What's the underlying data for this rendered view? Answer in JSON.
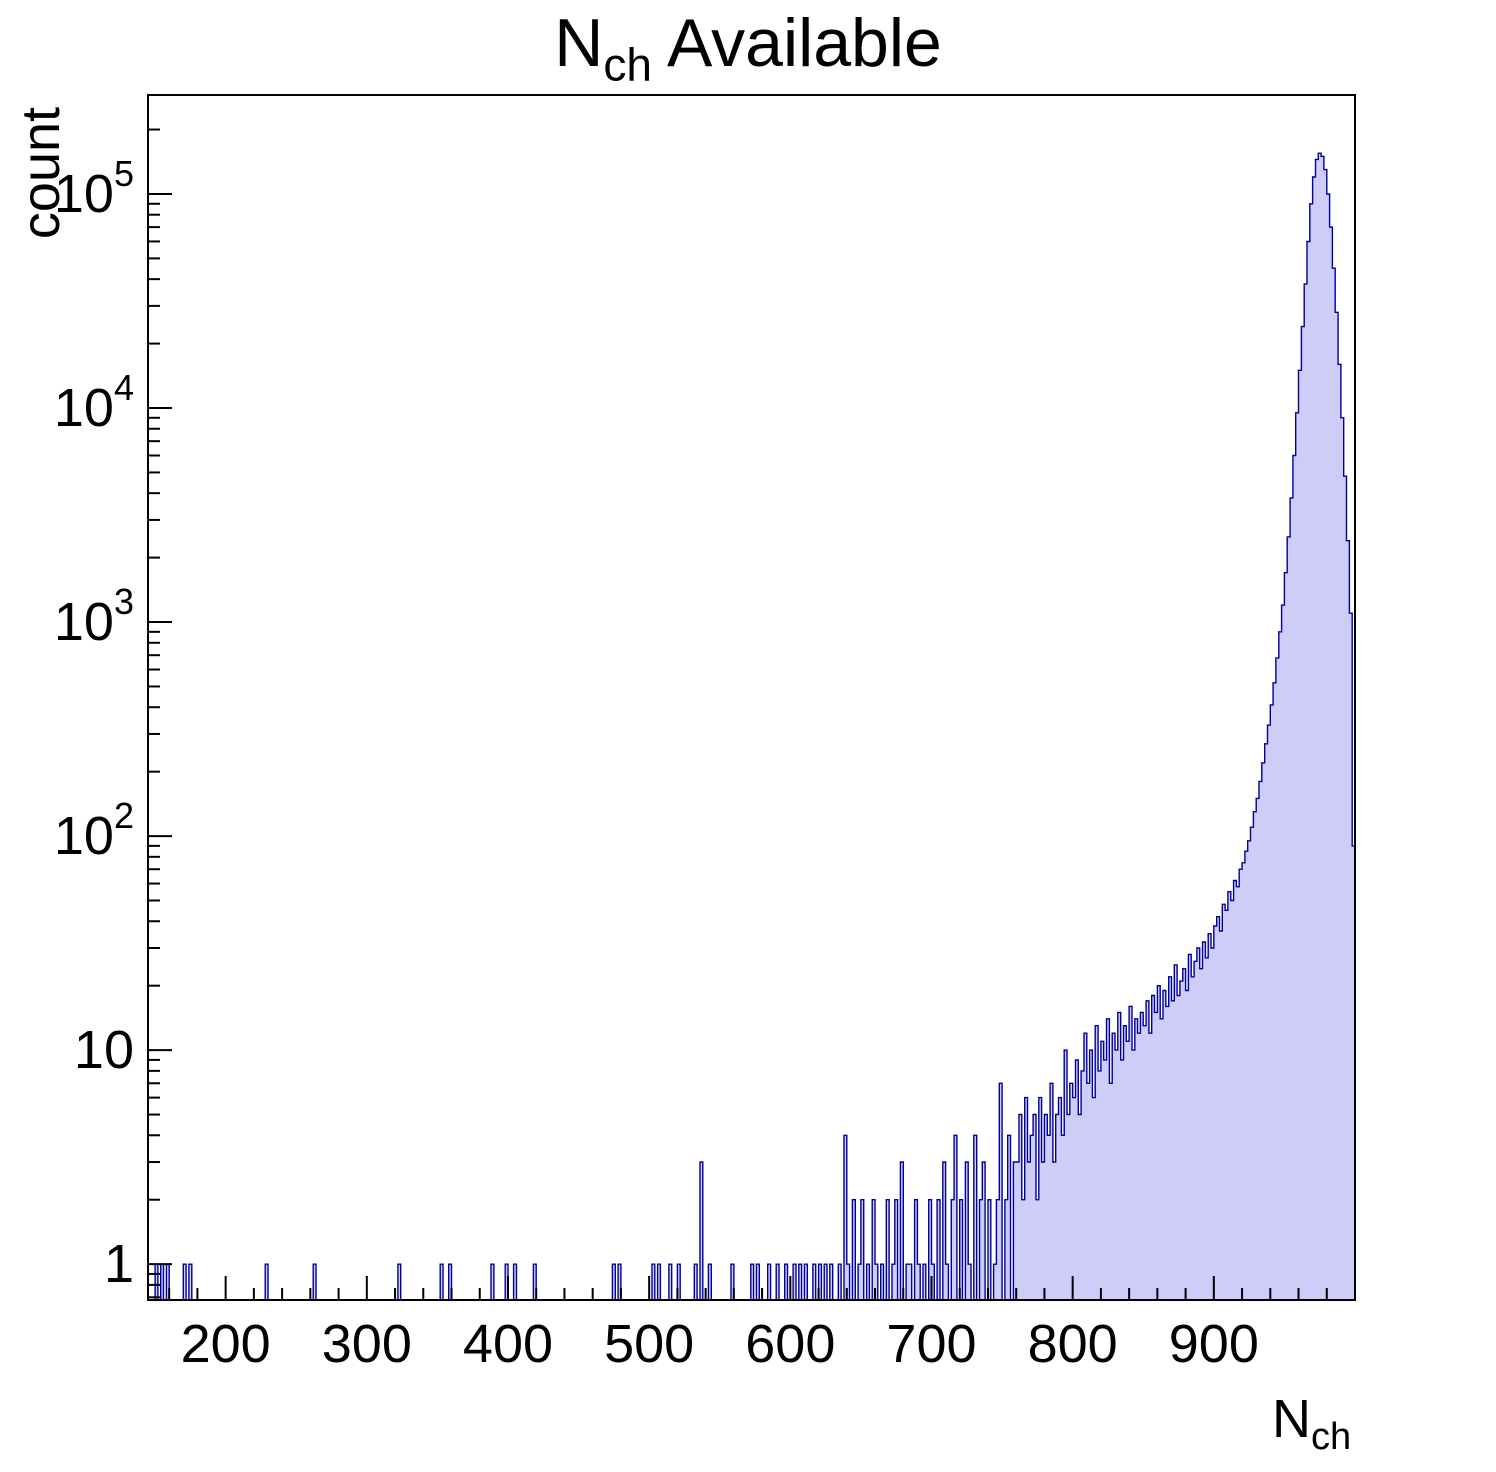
{
  "title": {
    "prefix": "N",
    "sub": "ch",
    "suffix": " Available"
  },
  "axes": {
    "x": {
      "label_prefix": "N",
      "label_sub": "ch",
      "min": 145,
      "max": 1000,
      "major_ticks": [
        200,
        300,
        400,
        500,
        600,
        700,
        800,
        900
      ],
      "minor_step": 20
    },
    "y": {
      "label": "count",
      "scale": "log",
      "min": 0.68,
      "max": 290000,
      "decade_ticks": [
        1,
        10,
        100,
        1000,
        10000,
        100000
      ]
    }
  },
  "style": {
    "fill_color": "#cdcdf8",
    "line_color": "#00009a",
    "axis_color": "#000000",
    "background": "#ffffff"
  },
  "chart_data": {
    "type": "bar",
    "title": "N_ch Available",
    "xlabel": "N_ch",
    "ylabel": "count",
    "yscale": "log",
    "xlim": [
      145,
      1000
    ],
    "ylim": [
      0.68,
      290000
    ],
    "legend": "none",
    "grid": false,
    "bin_width": 2,
    "bins": [
      [
        150,
        1
      ],
      [
        154,
        1
      ],
      [
        158,
        1
      ],
      [
        170,
        1
      ],
      [
        174,
        1
      ],
      [
        228,
        1
      ],
      [
        262,
        1
      ],
      [
        322,
        1
      ],
      [
        352,
        1
      ],
      [
        358,
        1
      ],
      [
        388,
        1
      ],
      [
        398,
        1
      ],
      [
        404,
        1
      ],
      [
        418,
        1
      ],
      [
        474,
        1
      ],
      [
        478,
        1
      ],
      [
        502,
        1
      ],
      [
        506,
        1
      ],
      [
        514,
        1
      ],
      [
        520,
        1
      ],
      [
        532,
        1
      ],
      [
        536,
        3
      ],
      [
        542,
        1
      ],
      [
        558,
        1
      ],
      [
        572,
        1
      ],
      [
        576,
        1
      ],
      [
        584,
        1
      ],
      [
        590,
        1
      ],
      [
        596,
        1
      ],
      [
        602,
        1
      ],
      [
        606,
        1
      ],
      [
        610,
        1
      ],
      [
        616,
        1
      ],
      [
        620,
        1
      ],
      [
        624,
        1
      ],
      [
        628,
        1
      ],
      [
        634,
        1
      ],
      [
        638,
        4
      ],
      [
        640,
        1
      ],
      [
        644,
        2
      ],
      [
        648,
        1
      ],
      [
        650,
        2
      ],
      [
        654,
        1
      ],
      [
        658,
        2
      ],
      [
        660,
        1
      ],
      [
        664,
        1
      ],
      [
        668,
        2
      ],
      [
        672,
        1
      ],
      [
        674,
        2
      ],
      [
        678,
        3
      ],
      [
        682,
        1
      ],
      [
        684,
        1
      ],
      [
        688,
        2
      ],
      [
        690,
        1
      ],
      [
        694,
        1
      ],
      [
        698,
        2
      ],
      [
        700,
        1
      ],
      [
        704,
        2
      ],
      [
        708,
        3
      ],
      [
        710,
        1
      ],
      [
        714,
        2
      ],
      [
        716,
        4
      ],
      [
        720,
        2
      ],
      [
        724,
        3
      ],
      [
        726,
        1
      ],
      [
        730,
        4
      ],
      [
        734,
        2
      ],
      [
        736,
        3
      ],
      [
        740,
        2
      ],
      [
        744,
        1
      ],
      [
        746,
        2
      ],
      [
        748,
        7
      ],
      [
        752,
        2
      ],
      [
        754,
        4
      ],
      [
        758,
        3
      ],
      [
        760,
        3
      ],
      [
        762,
        5
      ],
      [
        764,
        2
      ],
      [
        766,
        6
      ],
      [
        768,
        3
      ],
      [
        770,
        4
      ],
      [
        772,
        5
      ],
      [
        774,
        2
      ],
      [
        776,
        6
      ],
      [
        778,
        3
      ],
      [
        780,
        5
      ],
      [
        782,
        4
      ],
      [
        784,
        7
      ],
      [
        786,
        3
      ],
      [
        788,
        5
      ],
      [
        790,
        6
      ],
      [
        792,
        4
      ],
      [
        794,
        10
      ],
      [
        796,
        5
      ],
      [
        798,
        7
      ],
      [
        800,
        6
      ],
      [
        802,
        9
      ],
      [
        804,
        5
      ],
      [
        806,
        8
      ],
      [
        808,
        12
      ],
      [
        810,
        7
      ],
      [
        812,
        10
      ],
      [
        814,
        6
      ],
      [
        816,
        13
      ],
      [
        818,
        8
      ],
      [
        820,
        11
      ],
      [
        822,
        9
      ],
      [
        824,
        14
      ],
      [
        826,
        7
      ],
      [
        828,
        12
      ],
      [
        830,
        10
      ],
      [
        832,
        15
      ],
      [
        834,
        9
      ],
      [
        836,
        13
      ],
      [
        838,
        11
      ],
      [
        840,
        16
      ],
      [
        842,
        10
      ],
      [
        844,
        14
      ],
      [
        846,
        12
      ],
      [
        848,
        15
      ],
      [
        850,
        13
      ],
      [
        852,
        17
      ],
      [
        854,
        12
      ],
      [
        856,
        18
      ],
      [
        858,
        15
      ],
      [
        860,
        20
      ],
      [
        862,
        14
      ],
      [
        864,
        19
      ],
      [
        866,
        16
      ],
      [
        868,
        22
      ],
      [
        870,
        17
      ],
      [
        872,
        25
      ],
      [
        874,
        18
      ],
      [
        876,
        21
      ],
      [
        878,
        24
      ],
      [
        880,
        19
      ],
      [
        882,
        28
      ],
      [
        884,
        22
      ],
      [
        886,
        26
      ],
      [
        888,
        30
      ],
      [
        890,
        24
      ],
      [
        892,
        32
      ],
      [
        894,
        27
      ],
      [
        896,
        35
      ],
      [
        898,
        30
      ],
      [
        900,
        38
      ],
      [
        902,
        42
      ],
      [
        904,
        36
      ],
      [
        906,
        48
      ],
      [
        908,
        45
      ],
      [
        910,
        55
      ],
      [
        912,
        50
      ],
      [
        914,
        62
      ],
      [
        916,
        58
      ],
      [
        918,
        70
      ],
      [
        920,
        75
      ],
      [
        922,
        85
      ],
      [
        924,
        95
      ],
      [
        926,
        110
      ],
      [
        928,
        130
      ],
      [
        930,
        150
      ],
      [
        932,
        180
      ],
      [
        934,
        220
      ],
      [
        936,
        270
      ],
      [
        938,
        330
      ],
      [
        940,
        410
      ],
      [
        942,
        520
      ],
      [
        944,
        680
      ],
      [
        946,
        900
      ],
      [
        948,
        1200
      ],
      [
        950,
        1700
      ],
      [
        952,
        2500
      ],
      [
        954,
        3800
      ],
      [
        956,
        6000
      ],
      [
        958,
        9500
      ],
      [
        960,
        15000
      ],
      [
        962,
        24000
      ],
      [
        964,
        38000
      ],
      [
        966,
        60000
      ],
      [
        968,
        90000
      ],
      [
        970,
        120000
      ],
      [
        972,
        145000
      ],
      [
        974,
        155000
      ],
      [
        976,
        150000
      ],
      [
        978,
        130000
      ],
      [
        980,
        100000
      ],
      [
        982,
        70000
      ],
      [
        984,
        45000
      ],
      [
        986,
        28000
      ],
      [
        988,
        16000
      ],
      [
        990,
        9000
      ],
      [
        992,
        4800
      ],
      [
        994,
        2400
      ],
      [
        996,
        1100
      ],
      [
        998,
        90
      ]
    ]
  }
}
